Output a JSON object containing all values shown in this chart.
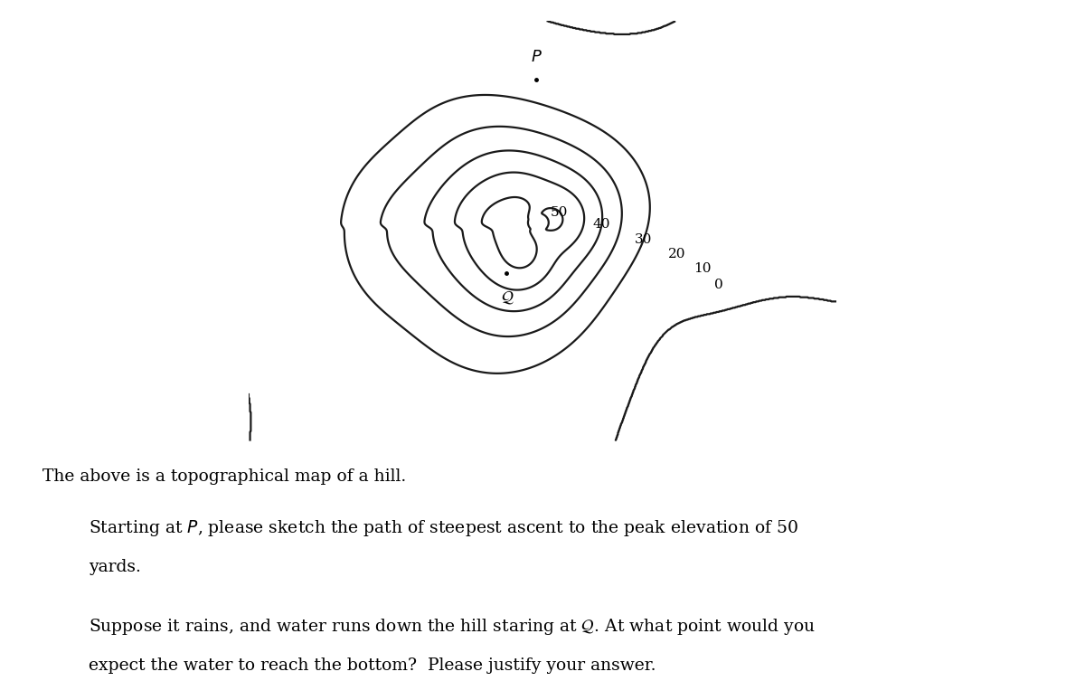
{
  "background_color": "#ffffff",
  "text_color": "#000000",
  "contour_color": "#1a1a1a",
  "contour_linewidth": 1.6,
  "levels": [
    0,
    10,
    20,
    30,
    40,
    50
  ],
  "font_family": "serif",
  "label_line1": "The above is a topographical map of a hill.",
  "label_line2": "Starting at $P$, please sketch the path of steepest ascent to the peak elevation of 50",
  "label_line2b": "yards.",
  "label_line3": "Suppose it rains, and water runs down the hill staring at $\\mathcal{Q}$. At what point would you",
  "label_line3b": "expect the water to reach the bottom?  Please justify your answer."
}
